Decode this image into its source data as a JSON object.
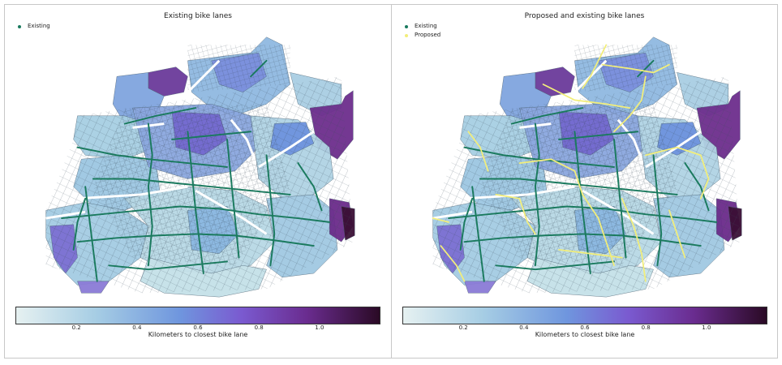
{
  "left_panel": {
    "title": "Existing bike lanes",
    "legend": [
      {
        "label": "Existing",
        "color": "#1a7a5e"
      }
    ]
  },
  "right_panel": {
    "title": "Proposed and existing bike lanes",
    "legend": [
      {
        "label": "Existing",
        "color": "#1a7a5e"
      },
      {
        "label": "Proposed",
        "color": "#f2ee7a"
      }
    ]
  },
  "colorbar": {
    "label": "Kilometers to closest bike lane",
    "ticks": [
      "0.2",
      "0.4",
      "0.6",
      "0.8",
      "1.0"
    ],
    "tick_values": [
      0.2,
      0.4,
      0.6,
      0.8,
      1.0
    ],
    "range": [
      0.0,
      1.2
    ],
    "colormap": [
      "#e6f1f1",
      "#a6cde4",
      "#6f96de",
      "#7a5ad0",
      "#6a2c8f",
      "#2a0a25"
    ]
  }
}
